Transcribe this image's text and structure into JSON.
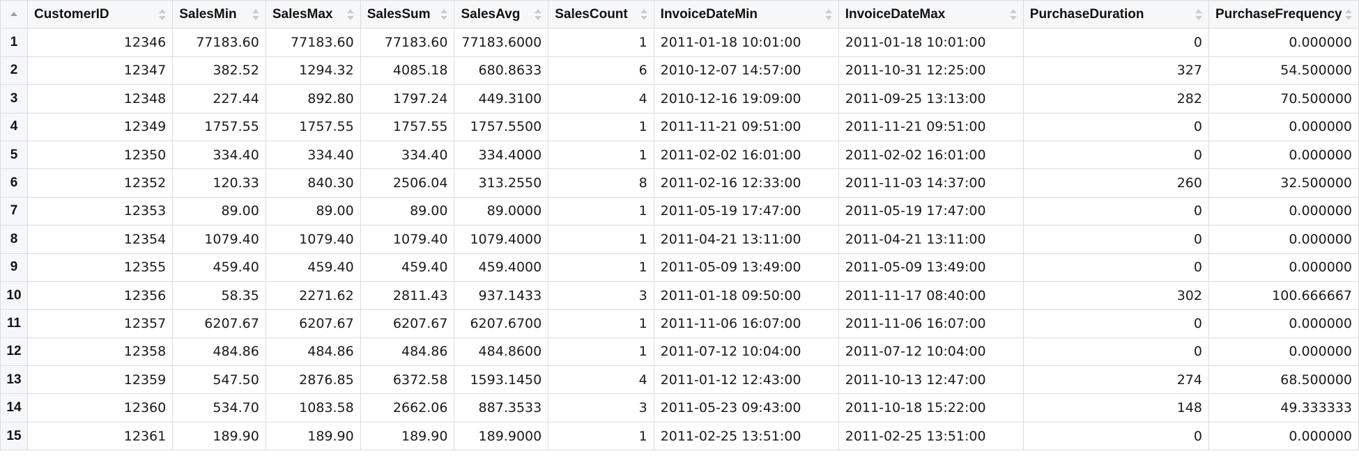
{
  "table": {
    "columns": [
      "CustomerID",
      "SalesMin",
      "SalesMax",
      "SalesSum",
      "SalesAvg",
      "SalesCount",
      "InvoiceDateMin",
      "InvoiceDateMax",
      "PurchaseDuration",
      "PurchaseFrequency"
    ],
    "rows": [
      {
        "n": "1",
        "cells": [
          "12346",
          "77183.60",
          "77183.60",
          "77183.60",
          "77183.6000",
          "1",
          "2011-01-18 10:01:00",
          "2011-01-18 10:01:00",
          "0",
          "0.000000"
        ]
      },
      {
        "n": "2",
        "cells": [
          "12347",
          "382.52",
          "1294.32",
          "4085.18",
          "680.8633",
          "6",
          "2010-12-07 14:57:00",
          "2011-10-31 12:25:00",
          "327",
          "54.500000"
        ]
      },
      {
        "n": "3",
        "cells": [
          "12348",
          "227.44",
          "892.80",
          "1797.24",
          "449.3100",
          "4",
          "2010-12-16 19:09:00",
          "2011-09-25 13:13:00",
          "282",
          "70.500000"
        ]
      },
      {
        "n": "4",
        "cells": [
          "12349",
          "1757.55",
          "1757.55",
          "1757.55",
          "1757.5500",
          "1",
          "2011-11-21 09:51:00",
          "2011-11-21 09:51:00",
          "0",
          "0.000000"
        ]
      },
      {
        "n": "5",
        "cells": [
          "12350",
          "334.40",
          "334.40",
          "334.40",
          "334.4000",
          "1",
          "2011-02-02 16:01:00",
          "2011-02-02 16:01:00",
          "0",
          "0.000000"
        ]
      },
      {
        "n": "6",
        "cells": [
          "12352",
          "120.33",
          "840.30",
          "2506.04",
          "313.2550",
          "8",
          "2011-02-16 12:33:00",
          "2011-11-03 14:37:00",
          "260",
          "32.500000"
        ]
      },
      {
        "n": "7",
        "cells": [
          "12353",
          "89.00",
          "89.00",
          "89.00",
          "89.0000",
          "1",
          "2011-05-19 17:47:00",
          "2011-05-19 17:47:00",
          "0",
          "0.000000"
        ]
      },
      {
        "n": "8",
        "cells": [
          "12354",
          "1079.40",
          "1079.40",
          "1079.40",
          "1079.4000",
          "1",
          "2011-04-21 13:11:00",
          "2011-04-21 13:11:00",
          "0",
          "0.000000"
        ]
      },
      {
        "n": "9",
        "cells": [
          "12355",
          "459.40",
          "459.40",
          "459.40",
          "459.4000",
          "1",
          "2011-05-09 13:49:00",
          "2011-05-09 13:49:00",
          "0",
          "0.000000"
        ]
      },
      {
        "n": "10",
        "cells": [
          "12356",
          "58.35",
          "2271.62",
          "2811.43",
          "937.1433",
          "3",
          "2011-01-18 09:50:00",
          "2011-11-17 08:40:00",
          "302",
          "100.666667"
        ]
      },
      {
        "n": "11",
        "cells": [
          "12357",
          "6207.67",
          "6207.67",
          "6207.67",
          "6207.6700",
          "1",
          "2011-11-06 16:07:00",
          "2011-11-06 16:07:00",
          "0",
          "0.000000"
        ]
      },
      {
        "n": "12",
        "cells": [
          "12358",
          "484.86",
          "484.86",
          "484.86",
          "484.8600",
          "1",
          "2011-07-12 10:04:00",
          "2011-07-12 10:04:00",
          "0",
          "0.000000"
        ]
      },
      {
        "n": "13",
        "cells": [
          "12359",
          "547.50",
          "2876.85",
          "6372.58",
          "1593.1450",
          "4",
          "2011-01-12 12:43:00",
          "2011-10-13 12:47:00",
          "274",
          "68.500000"
        ]
      },
      {
        "n": "14",
        "cells": [
          "12360",
          "534.70",
          "1083.58",
          "2662.06",
          "887.3533",
          "3",
          "2011-05-23 09:43:00",
          "2011-10-18 15:22:00",
          "148",
          "49.333333"
        ]
      },
      {
        "n": "15",
        "cells": [
          "12361",
          "189.90",
          "189.90",
          "189.90",
          "189.9000",
          "1",
          "2011-02-25 13:51:00",
          "2011-02-25 13:51:00",
          "0",
          "0.000000"
        ]
      }
    ]
  },
  "icons": {
    "sort": "sort-arrows-icon",
    "rownum_sort": "sort-up-icon"
  },
  "colors": {
    "header_bg": "#f6f7f9",
    "grid_line": "#dcdcdc",
    "sort_arrow": "#c9ccd1"
  }
}
